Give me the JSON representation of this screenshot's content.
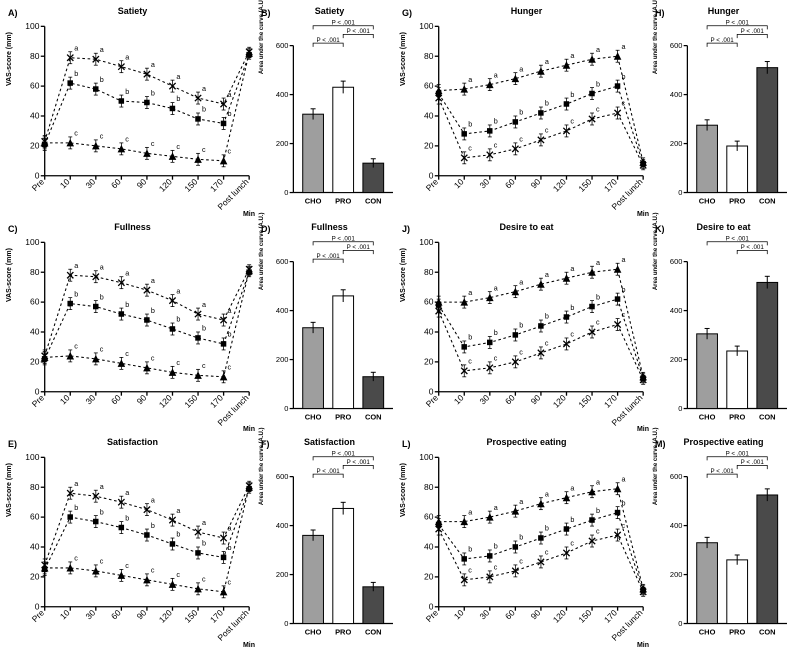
{
  "global": {
    "bg": "#ffffff",
    "axis_color": "#000000",
    "line_color": "#000000",
    "error_color": "#000000",
    "font_family": "Arial",
    "label_size": 9,
    "tick_size": 6.5
  },
  "time_x_ticks": [
    "Pre",
    "10",
    "30",
    "60",
    "90",
    "120",
    "150",
    "170",
    "Post lunch"
  ],
  "time_x_label": "Min",
  "line_y_label": "VAS-score (mm)",
  "line_y_ticks": [
    0,
    20,
    40,
    60,
    80,
    100
  ],
  "line_y_lim": [
    0,
    100
  ],
  "bar_x_ticks": [
    "CHO",
    "PRO",
    "CON"
  ],
  "bar_colors": [
    "#9e9e9e",
    "#ffffff",
    "#4a4a4a"
  ],
  "bar_y_label": "Area under the curve (A.U.)",
  "bar_y_lim": [
    0,
    600
  ],
  "bar_y_ticks": [
    0,
    200,
    400,
    600
  ],
  "series": {
    "markers": [
      "square",
      "x",
      "triangle"
    ],
    "line_style": "dashed",
    "sig_letters": [
      "a",
      "b",
      "c"
    ]
  },
  "panels": {
    "A": {
      "label": "A)",
      "title": "Satiety",
      "type": "line",
      "data": {
        "CHO": {
          "marker": "square",
          "y": [
            21,
            62,
            58,
            50,
            49,
            45,
            38,
            35,
            81
          ],
          "err": [
            4,
            4,
            4,
            4,
            4,
            4,
            4,
            4,
            3
          ],
          "sig": [
            "",
            "b",
            "b",
            "b",
            "b",
            "b",
            "b",
            "b",
            ""
          ]
        },
        "PRO": {
          "marker": "x",
          "y": [
            23,
            79,
            78,
            73,
            68,
            60,
            52,
            48,
            83
          ],
          "err": [
            4,
            4,
            4,
            4,
            4,
            4,
            4,
            4,
            3
          ],
          "sig": [
            "",
            "a",
            "a",
            "a",
            "a",
            "a",
            "a",
            "a",
            ""
          ]
        },
        "CON": {
          "marker": "triangle",
          "y": [
            22,
            22,
            20,
            18,
            15,
            13,
            11,
            10,
            82
          ],
          "err": [
            4,
            4,
            4,
            4,
            4,
            4,
            4,
            4,
            3
          ],
          "sig": [
            "",
            "c",
            "c",
            "c",
            "c",
            "c",
            "c",
            "c",
            ""
          ]
        }
      }
    },
    "B": {
      "label": "B)",
      "title": "Satiety",
      "type": "bar",
      "values": [
        320,
        430,
        120
      ],
      "err": [
        22,
        25,
        18
      ],
      "sig": [
        [
          "CHO-PRO",
          "P < .001"
        ],
        [
          "PRO-CON",
          "P < .001"
        ],
        [
          "CHO-CON",
          "P < .001"
        ]
      ]
    },
    "C": {
      "label": "C)",
      "title": "Fullness",
      "type": "line",
      "data": {
        "CHO": {
          "marker": "square",
          "y": [
            22,
            59,
            57,
            52,
            48,
            42,
            36,
            32,
            80
          ],
          "err": [
            4,
            4,
            4,
            4,
            4,
            4,
            4,
            4,
            3
          ],
          "sig": [
            "",
            "b",
            "b",
            "b",
            "b",
            "b",
            "b",
            "b",
            ""
          ]
        },
        "PRO": {
          "marker": "x",
          "y": [
            24,
            78,
            77,
            73,
            68,
            61,
            52,
            48,
            82
          ],
          "err": [
            4,
            4,
            4,
            4,
            4,
            4,
            4,
            4,
            3
          ],
          "sig": [
            "",
            "a",
            "a",
            "a",
            "a",
            "a",
            "a",
            "a",
            ""
          ]
        },
        "CON": {
          "marker": "triangle",
          "y": [
            23,
            24,
            22,
            19,
            16,
            13,
            11,
            10,
            81
          ],
          "err": [
            4,
            4,
            4,
            4,
            4,
            4,
            4,
            4,
            3
          ],
          "sig": [
            "",
            "c",
            "c",
            "c",
            "c",
            "c",
            "c",
            "c",
            ""
          ]
        }
      }
    },
    "D": {
      "label": "D)",
      "title": "Fullness",
      "type": "bar",
      "values": [
        330,
        460,
        130
      ],
      "err": [
        22,
        25,
        18
      ],
      "sig": [
        [
          "CHO-PRO",
          "P < .001"
        ],
        [
          "PRO-CON",
          "P < .001"
        ],
        [
          "CHO-CON",
          "P < .001"
        ]
      ]
    },
    "E": {
      "label": "E)",
      "title": "Satisfaction",
      "type": "line",
      "data": {
        "CHO": {
          "marker": "square",
          "y": [
            25,
            60,
            57,
            53,
            48,
            42,
            36,
            33,
            79
          ],
          "err": [
            4,
            4,
            4,
            4,
            4,
            4,
            4,
            4,
            3
          ],
          "sig": [
            "",
            "b",
            "b",
            "b",
            "b",
            "b",
            "b",
            "b",
            ""
          ]
        },
        "PRO": {
          "marker": "x",
          "y": [
            28,
            76,
            74,
            70,
            65,
            58,
            50,
            46,
            81
          ],
          "err": [
            4,
            4,
            4,
            4,
            4,
            4,
            4,
            4,
            3
          ],
          "sig": [
            "",
            "a",
            "a",
            "a",
            "a",
            "a",
            "a",
            "a",
            ""
          ]
        },
        "CON": {
          "marker": "triangle",
          "y": [
            26,
            26,
            24,
            21,
            18,
            15,
            12,
            10,
            80
          ],
          "err": [
            4,
            4,
            4,
            4,
            4,
            4,
            4,
            4,
            3
          ],
          "sig": [
            "",
            "c",
            "c",
            "c",
            "c",
            "c",
            "c",
            "c",
            ""
          ]
        }
      }
    },
    "F": {
      "label": "F)",
      "title": "Satisfaction",
      "type": "bar",
      "values": [
        360,
        470,
        150
      ],
      "err": [
        22,
        25,
        18
      ],
      "sig": [
        [
          "CHO-PRO",
          "P < .001"
        ],
        [
          "PRO-CON",
          "P < .001"
        ],
        [
          "CHO-CON",
          "P < .001"
        ]
      ]
    },
    "G": {
      "label": "G)",
      "title": "Hunger",
      "type": "line",
      "data": {
        "CHO": {
          "marker": "square",
          "y": [
            55,
            28,
            30,
            36,
            42,
            48,
            55,
            60,
            8
          ],
          "err": [
            4,
            4,
            4,
            4,
            4,
            4,
            4,
            4,
            3
          ],
          "sig": [
            "",
            "b",
            "b",
            "b",
            "b",
            "b",
            "b",
            "b",
            ""
          ]
        },
        "PRO": {
          "marker": "x",
          "y": [
            52,
            12,
            14,
            18,
            24,
            30,
            38,
            42,
            7
          ],
          "err": [
            4,
            4,
            4,
            4,
            4,
            4,
            4,
            4,
            3
          ],
          "sig": [
            "",
            "c",
            "c",
            "c",
            "c",
            "c",
            "c",
            "c",
            ""
          ]
        },
        "CON": {
          "marker": "triangle",
          "y": [
            57,
            58,
            61,
            65,
            70,
            74,
            78,
            80,
            9
          ],
          "err": [
            4,
            4,
            4,
            4,
            4,
            4,
            4,
            4,
            3
          ],
          "sig": [
            "",
            "a",
            "a",
            "a",
            "a",
            "a",
            "a",
            "a",
            ""
          ]
        }
      }
    },
    "H": {
      "label": "H)",
      "title": "Hunger",
      "type": "bar",
      "values": [
        275,
        190,
        510
      ],
      "err": [
        22,
        20,
        25
      ],
      "sig": [
        [
          "CHO-PRO",
          "P < .001"
        ],
        [
          "PRO-CON",
          "P < .001"
        ],
        [
          "CHO-CON",
          "P < .001"
        ]
      ]
    },
    "J": {
      "label": "J)",
      "title": "Desire to eat",
      "type": "line",
      "data": {
        "CHO": {
          "marker": "square",
          "y": [
            58,
            30,
            33,
            38,
            44,
            50,
            57,
            62,
            9
          ],
          "err": [
            4,
            4,
            4,
            4,
            4,
            4,
            4,
            4,
            3
          ],
          "sig": [
            "",
            "b",
            "b",
            "b",
            "b",
            "b",
            "b",
            "b",
            ""
          ]
        },
        "PRO": {
          "marker": "x",
          "y": [
            54,
            14,
            16,
            20,
            26,
            32,
            40,
            45,
            8
          ],
          "err": [
            4,
            4,
            4,
            4,
            4,
            4,
            4,
            4,
            3
          ],
          "sig": [
            "",
            "c",
            "c",
            "c",
            "c",
            "c",
            "c",
            "c",
            ""
          ]
        },
        "CON": {
          "marker": "triangle",
          "y": [
            60,
            60,
            63,
            67,
            72,
            76,
            80,
            82,
            10
          ],
          "err": [
            4,
            4,
            4,
            4,
            4,
            4,
            4,
            4,
            3
          ],
          "sig": [
            "",
            "a",
            "a",
            "a",
            "a",
            "a",
            "a",
            "a",
            ""
          ]
        }
      }
    },
    "K": {
      "label": "K)",
      "title": "Desire to eat",
      "type": "bar",
      "values": [
        305,
        235,
        515
      ],
      "err": [
        22,
        20,
        25
      ],
      "sig": [
        [
          "CHO-PRO",
          "-"
        ],
        [
          "PRO-CON",
          "P < .001"
        ],
        [
          "CHO-CON",
          "P < .001"
        ]
      ]
    },
    "L": {
      "label": "L)",
      "title": "Prospective eating",
      "type": "line",
      "data": {
        "CHO": {
          "marker": "square",
          "y": [
            55,
            32,
            34,
            40,
            46,
            52,
            58,
            63,
            11
          ],
          "err": [
            4,
            4,
            4,
            4,
            4,
            4,
            4,
            4,
            3
          ],
          "sig": [
            "",
            "b",
            "b",
            "b",
            "b",
            "b",
            "b",
            "b",
            ""
          ]
        },
        "PRO": {
          "marker": "x",
          "y": [
            52,
            18,
            20,
            24,
            30,
            36,
            44,
            48,
            10
          ],
          "err": [
            4,
            4,
            4,
            4,
            4,
            4,
            4,
            4,
            3
          ],
          "sig": [
            "",
            "c",
            "c",
            "c",
            "c",
            "c",
            "c",
            "c",
            ""
          ]
        },
        "CON": {
          "marker": "triangle",
          "y": [
            57,
            57,
            60,
            64,
            69,
            73,
            77,
            79,
            12
          ],
          "err": [
            4,
            4,
            4,
            4,
            4,
            4,
            4,
            4,
            3
          ],
          "sig": [
            "",
            "a",
            "a",
            "a",
            "a",
            "a",
            "a",
            "a",
            ""
          ]
        }
      }
    },
    "M": {
      "label": "M)",
      "title": "Prospective eating",
      "type": "bar",
      "values": [
        330,
        260,
        525
      ],
      "err": [
        22,
        20,
        25
      ],
      "sig": [
        [
          "CHO-PRO",
          "P < .001"
        ],
        [
          "PRO-CON",
          "P < .001"
        ],
        [
          "CHO-CON",
          "P < .001"
        ]
      ]
    }
  },
  "layout_order": [
    "A",
    "B",
    "G",
    "H",
    "C",
    "D",
    "J",
    "K",
    "E",
    "F",
    "L",
    "M"
  ]
}
